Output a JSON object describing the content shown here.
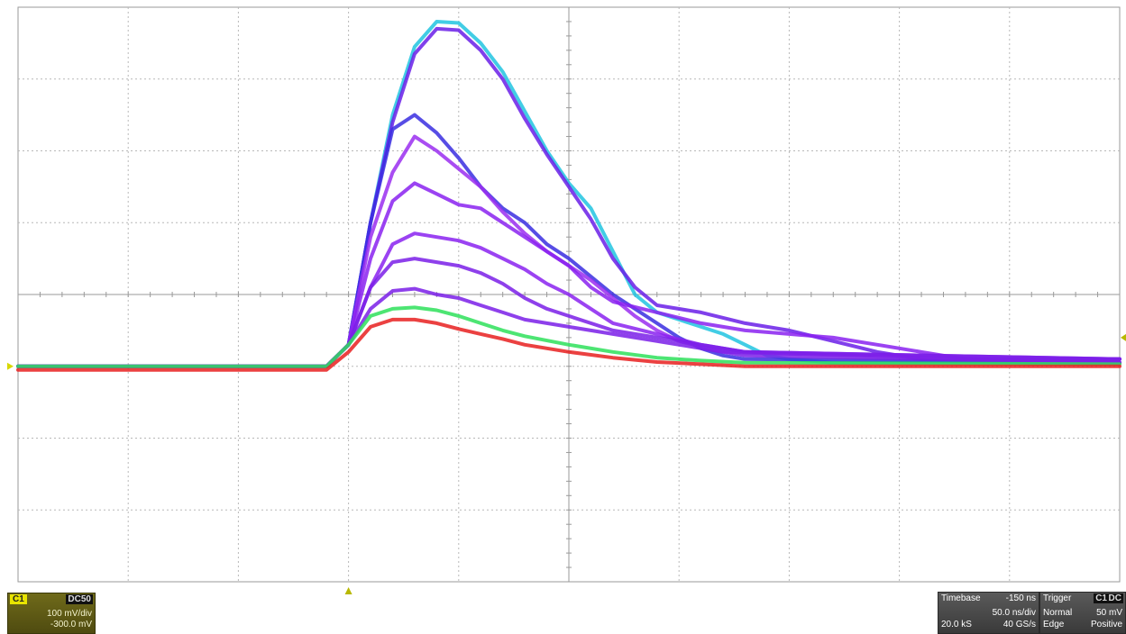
{
  "channel": {
    "id": "C1",
    "coupling": "DC50",
    "volts_per_div": "100 mV/div",
    "offset": "-300.0 mV",
    "color": "#e8e400"
  },
  "timebase": {
    "title": "Timebase",
    "delay": "-150 ns",
    "time_per_div": "50.0 ns/div",
    "samples": "20.0 kS",
    "sample_rate": "40 GS/s"
  },
  "trigger": {
    "title": "Trigger",
    "source": "C1",
    "coupling": "DC",
    "mode": "Normal",
    "level": "50 mV",
    "type": "Edge",
    "slope": "Positive"
  },
  "chart_data": {
    "type": "line",
    "grid": true,
    "xlim": [
      -150,
      350
    ],
    "ylim": [
      -300,
      500
    ],
    "xunit": "ns",
    "yunit": "mV",
    "baseline_mV": 0,
    "trigger_time_ns": 0,
    "series": [
      {
        "color": "#21c4e0",
        "values": [
          [
            -150,
            0
          ],
          [
            -10,
            0
          ],
          [
            0,
            30
          ],
          [
            10,
            200
          ],
          [
            20,
            350
          ],
          [
            30,
            445
          ],
          [
            40,
            480
          ],
          [
            50,
            478
          ],
          [
            60,
            450
          ],
          [
            70,
            410
          ],
          [
            80,
            355
          ],
          [
            90,
            300
          ],
          [
            100,
            255
          ],
          [
            110,
            220
          ],
          [
            120,
            160
          ],
          [
            130,
            100
          ],
          [
            140,
            75
          ],
          [
            150,
            65
          ],
          [
            160,
            55
          ],
          [
            170,
            45
          ],
          [
            180,
            30
          ],
          [
            190,
            15
          ],
          [
            200,
            10
          ],
          [
            220,
            5
          ],
          [
            350,
            5
          ]
        ]
      },
      {
        "color": "#6a1ee8",
        "values": [
          [
            -150,
            0
          ],
          [
            -10,
            0
          ],
          [
            0,
            30
          ],
          [
            10,
            200
          ],
          [
            20,
            340
          ],
          [
            30,
            435
          ],
          [
            40,
            470
          ],
          [
            50,
            468
          ],
          [
            60,
            440
          ],
          [
            70,
            400
          ],
          [
            80,
            345
          ],
          [
            90,
            295
          ],
          [
            100,
            250
          ],
          [
            110,
            205
          ],
          [
            120,
            150
          ],
          [
            130,
            110
          ],
          [
            140,
            85
          ],
          [
            160,
            75
          ],
          [
            180,
            60
          ],
          [
            200,
            50
          ],
          [
            220,
            35
          ],
          [
            240,
            20
          ],
          [
            260,
            10
          ],
          [
            350,
            10
          ]
        ]
      },
      {
        "color": "#3a2ee0",
        "values": [
          [
            -150,
            0
          ],
          [
            -10,
            0
          ],
          [
            0,
            30
          ],
          [
            10,
            200
          ],
          [
            20,
            330
          ],
          [
            30,
            350
          ],
          [
            40,
            325
          ],
          [
            50,
            290
          ],
          [
            60,
            250
          ],
          [
            70,
            220
          ],
          [
            80,
            200
          ],
          [
            90,
            170
          ],
          [
            100,
            150
          ],
          [
            110,
            125
          ],
          [
            120,
            100
          ],
          [
            130,
            80
          ],
          [
            140,
            60
          ],
          [
            150,
            40
          ],
          [
            160,
            25
          ],
          [
            170,
            15
          ],
          [
            180,
            10
          ],
          [
            350,
            5
          ]
        ]
      },
      {
        "color": "#9a2ef0",
        "values": [
          [
            -150,
            0
          ],
          [
            -10,
            0
          ],
          [
            0,
            30
          ],
          [
            10,
            180
          ],
          [
            20,
            270
          ],
          [
            30,
            320
          ],
          [
            40,
            300
          ],
          [
            50,
            275
          ],
          [
            60,
            250
          ],
          [
            70,
            215
          ],
          [
            80,
            185
          ],
          [
            90,
            160
          ],
          [
            100,
            140
          ],
          [
            110,
            120
          ],
          [
            120,
            95
          ],
          [
            130,
            70
          ],
          [
            140,
            50
          ],
          [
            150,
            35
          ],
          [
            170,
            20
          ],
          [
            350,
            5
          ]
        ]
      },
      {
        "color": "#8a22f0",
        "values": [
          [
            -150,
            0
          ],
          [
            -10,
            0
          ],
          [
            0,
            30
          ],
          [
            10,
            150
          ],
          [
            20,
            230
          ],
          [
            30,
            255
          ],
          [
            40,
            240
          ],
          [
            50,
            225
          ],
          [
            60,
            220
          ],
          [
            70,
            200
          ],
          [
            80,
            180
          ],
          [
            90,
            160
          ],
          [
            100,
            140
          ],
          [
            110,
            110
          ],
          [
            120,
            90
          ],
          [
            140,
            75
          ],
          [
            160,
            60
          ],
          [
            180,
            50
          ],
          [
            200,
            45
          ],
          [
            220,
            40
          ],
          [
            240,
            30
          ],
          [
            260,
            20
          ],
          [
            280,
            10
          ],
          [
            350,
            10
          ]
        ]
      },
      {
        "color": "#8a22f0",
        "values": [
          [
            -150,
            0
          ],
          [
            -10,
            0
          ],
          [
            0,
            30
          ],
          [
            10,
            110
          ],
          [
            20,
            170
          ],
          [
            30,
            185
          ],
          [
            40,
            180
          ],
          [
            50,
            175
          ],
          [
            60,
            165
          ],
          [
            70,
            150
          ],
          [
            80,
            135
          ],
          [
            90,
            115
          ],
          [
            100,
            100
          ],
          [
            110,
            80
          ],
          [
            120,
            60
          ],
          [
            140,
            45
          ],
          [
            160,
            30
          ],
          [
            180,
            20
          ],
          [
            350,
            10
          ]
        ]
      },
      {
        "color": "#7a1ee8",
        "values": [
          [
            -150,
            0
          ],
          [
            -10,
            0
          ],
          [
            0,
            30
          ],
          [
            10,
            110
          ],
          [
            20,
            145
          ],
          [
            30,
            150
          ],
          [
            40,
            145
          ],
          [
            50,
            140
          ],
          [
            60,
            130
          ],
          [
            70,
            115
          ],
          [
            80,
            95
          ],
          [
            90,
            80
          ],
          [
            100,
            70
          ],
          [
            110,
            60
          ],
          [
            120,
            50
          ],
          [
            140,
            40
          ],
          [
            160,
            30
          ],
          [
            180,
            20
          ],
          [
            350,
            10
          ]
        ]
      },
      {
        "color": "#7a1ee8",
        "values": [
          [
            -150,
            0
          ],
          [
            -10,
            0
          ],
          [
            0,
            30
          ],
          [
            10,
            80
          ],
          [
            20,
            105
          ],
          [
            30,
            108
          ],
          [
            40,
            100
          ],
          [
            50,
            95
          ],
          [
            60,
            85
          ],
          [
            70,
            75
          ],
          [
            80,
            65
          ],
          [
            100,
            55
          ],
          [
            120,
            45
          ],
          [
            140,
            35
          ],
          [
            160,
            25
          ],
          [
            180,
            15
          ],
          [
            350,
            5
          ]
        ]
      },
      {
        "color": "#2ee05a",
        "values": [
          [
            -150,
            0
          ],
          [
            -10,
            0
          ],
          [
            0,
            30
          ],
          [
            10,
            70
          ],
          [
            20,
            80
          ],
          [
            30,
            82
          ],
          [
            40,
            78
          ],
          [
            50,
            70
          ],
          [
            60,
            60
          ],
          [
            70,
            50
          ],
          [
            80,
            42
          ],
          [
            100,
            30
          ],
          [
            120,
            20
          ],
          [
            140,
            12
          ],
          [
            160,
            8
          ],
          [
            180,
            5
          ],
          [
            350,
            3
          ]
        ]
      },
      {
        "color": "#e82020",
        "values": [
          [
            -150,
            -5
          ],
          [
            -10,
            -5
          ],
          [
            0,
            20
          ],
          [
            10,
            55
          ],
          [
            20,
            65
          ],
          [
            30,
            65
          ],
          [
            40,
            60
          ],
          [
            50,
            52
          ],
          [
            60,
            45
          ],
          [
            70,
            38
          ],
          [
            80,
            30
          ],
          [
            100,
            20
          ],
          [
            120,
            12
          ],
          [
            140,
            6
          ],
          [
            160,
            3
          ],
          [
            180,
            0
          ],
          [
            350,
            0
          ]
        ]
      }
    ]
  }
}
